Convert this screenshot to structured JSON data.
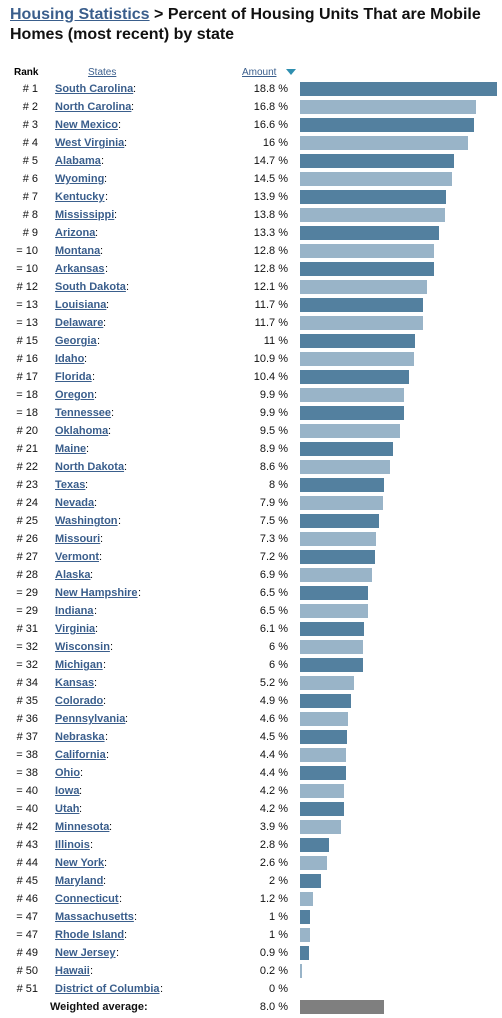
{
  "header": {
    "link": "Housing Statistics",
    "title_rest": " > Percent of Housing Units That are Mobile Homes (most recent) by state"
  },
  "columns": {
    "rank": "Rank",
    "states": "States",
    "amount": "Amount"
  },
  "colors": {
    "bar_dark": "#53809f",
    "bar_light": "#99b4c8",
    "bar_avg": "#7f7f7f",
    "link": "#3a5e8c"
  },
  "chart_data": {
    "type": "bar",
    "orientation": "horizontal",
    "unit": "%",
    "xlim": [
      0,
      18.8
    ],
    "rows": [
      {
        "rank": "# 1",
        "state": "South Carolina",
        "value": 18.8,
        "label": "18.8 %"
      },
      {
        "rank": "# 2",
        "state": "North Carolina",
        "value": 16.8,
        "label": "16.8 %"
      },
      {
        "rank": "# 3",
        "state": "New Mexico",
        "value": 16.6,
        "label": "16.6 %"
      },
      {
        "rank": "# 4",
        "state": "West Virginia",
        "value": 16,
        "label": "16 %"
      },
      {
        "rank": "# 5",
        "state": "Alabama",
        "value": 14.7,
        "label": "14.7 %"
      },
      {
        "rank": "# 6",
        "state": "Wyoming",
        "value": 14.5,
        "label": "14.5 %"
      },
      {
        "rank": "# 7",
        "state": "Kentucky",
        "value": 13.9,
        "label": "13.9 %"
      },
      {
        "rank": "# 8",
        "state": "Mississippi",
        "value": 13.8,
        "label": "13.8 %"
      },
      {
        "rank": "# 9",
        "state": "Arizona",
        "value": 13.3,
        "label": "13.3 %"
      },
      {
        "rank": "= 10",
        "state": "Montana",
        "value": 12.8,
        "label": "12.8 %"
      },
      {
        "rank": "= 10",
        "state": "Arkansas",
        "value": 12.8,
        "label": "12.8 %"
      },
      {
        "rank": "# 12",
        "state": "South Dakota",
        "value": 12.1,
        "label": "12.1 %"
      },
      {
        "rank": "= 13",
        "state": "Louisiana",
        "value": 11.7,
        "label": "11.7 %"
      },
      {
        "rank": "= 13",
        "state": "Delaware",
        "value": 11.7,
        "label": "11.7 %"
      },
      {
        "rank": "# 15",
        "state": "Georgia",
        "value": 11,
        "label": "11 %"
      },
      {
        "rank": "# 16",
        "state": "Idaho",
        "value": 10.9,
        "label": "10.9 %"
      },
      {
        "rank": "# 17",
        "state": "Florida",
        "value": 10.4,
        "label": "10.4 %"
      },
      {
        "rank": "= 18",
        "state": "Oregon",
        "value": 9.9,
        "label": "9.9 %"
      },
      {
        "rank": "= 18",
        "state": "Tennessee",
        "value": 9.9,
        "label": "9.9 %"
      },
      {
        "rank": "# 20",
        "state": "Oklahoma",
        "value": 9.5,
        "label": "9.5 %"
      },
      {
        "rank": "# 21",
        "state": "Maine",
        "value": 8.9,
        "label": "8.9 %"
      },
      {
        "rank": "# 22",
        "state": "North Dakota",
        "value": 8.6,
        "label": "8.6 %"
      },
      {
        "rank": "# 23",
        "state": "Texas",
        "value": 8,
        "label": "8 %"
      },
      {
        "rank": "# 24",
        "state": "Nevada",
        "value": 7.9,
        "label": "7.9 %"
      },
      {
        "rank": "# 25",
        "state": "Washington",
        "value": 7.5,
        "label": "7.5 %"
      },
      {
        "rank": "# 26",
        "state": "Missouri",
        "value": 7.3,
        "label": "7.3 %"
      },
      {
        "rank": "# 27",
        "state": "Vermont",
        "value": 7.2,
        "label": "7.2 %"
      },
      {
        "rank": "# 28",
        "state": "Alaska",
        "value": 6.9,
        "label": "6.9 %"
      },
      {
        "rank": "= 29",
        "state": "New Hampshire",
        "value": 6.5,
        "label": "6.5 %"
      },
      {
        "rank": "= 29",
        "state": "Indiana",
        "value": 6.5,
        "label": "6.5 %"
      },
      {
        "rank": "# 31",
        "state": "Virginia",
        "value": 6.1,
        "label": "6.1 %"
      },
      {
        "rank": "= 32",
        "state": "Wisconsin",
        "value": 6,
        "label": "6 %"
      },
      {
        "rank": "= 32",
        "state": "Michigan",
        "value": 6,
        "label": "6 %"
      },
      {
        "rank": "# 34",
        "state": "Kansas",
        "value": 5.2,
        "label": "5.2 %"
      },
      {
        "rank": "# 35",
        "state": "Colorado",
        "value": 4.9,
        "label": "4.9 %"
      },
      {
        "rank": "# 36",
        "state": "Pennsylvania",
        "value": 4.6,
        "label": "4.6 %"
      },
      {
        "rank": "# 37",
        "state": "Nebraska",
        "value": 4.5,
        "label": "4.5 %"
      },
      {
        "rank": "= 38",
        "state": "California",
        "value": 4.4,
        "label": "4.4 %"
      },
      {
        "rank": "= 38",
        "state": "Ohio",
        "value": 4.4,
        "label": "4.4 %"
      },
      {
        "rank": "= 40",
        "state": "Iowa",
        "value": 4.2,
        "label": "4.2 %"
      },
      {
        "rank": "= 40",
        "state": "Utah",
        "value": 4.2,
        "label": "4.2 %"
      },
      {
        "rank": "# 42",
        "state": "Minnesota",
        "value": 3.9,
        "label": "3.9 %"
      },
      {
        "rank": "# 43",
        "state": "Illinois",
        "value": 2.8,
        "label": "2.8 %"
      },
      {
        "rank": "# 44",
        "state": "New York",
        "value": 2.6,
        "label": "2.6 %"
      },
      {
        "rank": "# 45",
        "state": "Maryland",
        "value": 2,
        "label": "2 %"
      },
      {
        "rank": "# 46",
        "state": "Connecticut",
        "value": 1.2,
        "label": "1.2 %"
      },
      {
        "rank": "= 47",
        "state": "Massachusetts",
        "value": 1,
        "label": "1 %"
      },
      {
        "rank": "= 47",
        "state": "Rhode Island",
        "value": 1,
        "label": "1 %"
      },
      {
        "rank": "# 49",
        "state": "New Jersey",
        "value": 0.9,
        "label": "0.9 %"
      },
      {
        "rank": "# 50",
        "state": "Hawaii",
        "value": 0.2,
        "label": "0.2 %"
      },
      {
        "rank": "# 51",
        "state": "District of Columbia",
        "value": 0,
        "label": "0 %"
      }
    ],
    "average": {
      "label": "Weighted average:",
      "value": 8.0,
      "value_label": "8.0 %"
    }
  }
}
